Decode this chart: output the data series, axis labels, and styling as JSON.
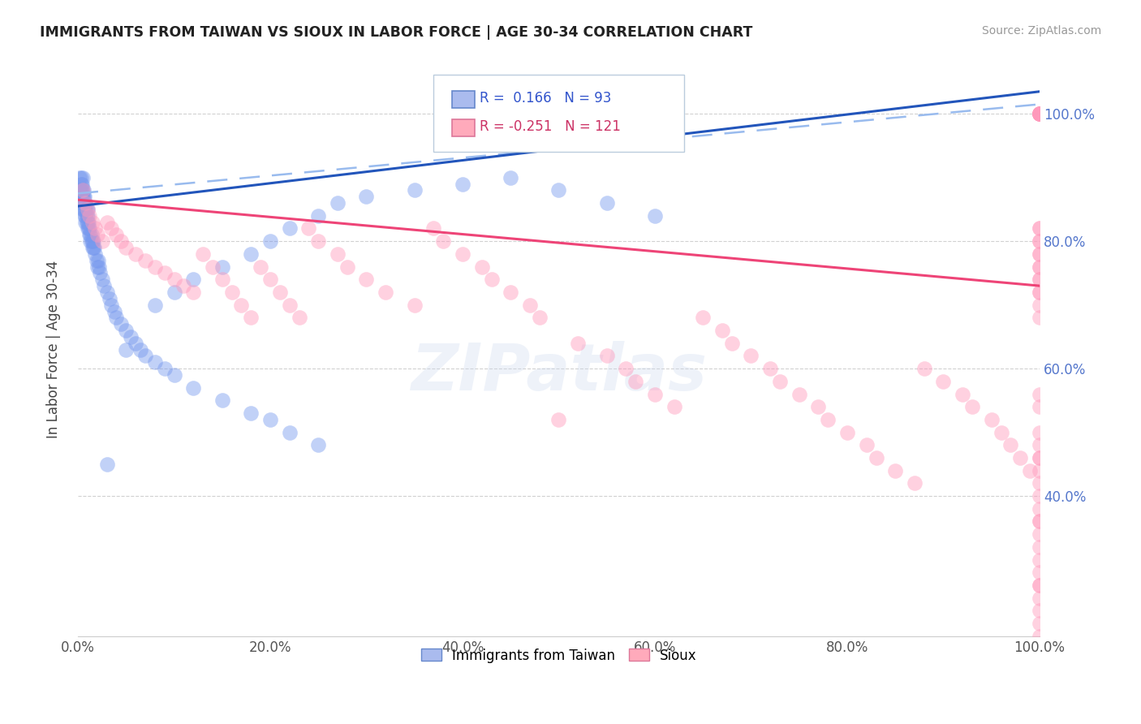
{
  "title": "IMMIGRANTS FROM TAIWAN VS SIOUX IN LABOR FORCE | AGE 30-34 CORRELATION CHART",
  "source": "Source: ZipAtlas.com",
  "ylabel": "In Labor Force | Age 30-34",
  "xlim": [
    0.0,
    1.0
  ],
  "ylim": [
    0.18,
    1.08
  ],
  "taiwan_R": 0.166,
  "taiwan_N": 93,
  "sioux_R": -0.251,
  "sioux_N": 121,
  "taiwan_color": "#7799ee",
  "sioux_color": "#ff99bb",
  "taiwan_trend_color": "#2255bb",
  "sioux_trend_color": "#ee4477",
  "taiwan_dashed_color": "#99bbee",
  "background_color": "#ffffff",
  "grid_color": "#cccccc",
  "tick_color": "#5577cc",
  "taiwan_x": [
    0.002,
    0.002,
    0.003,
    0.003,
    0.003,
    0.003,
    0.004,
    0.004,
    0.004,
    0.004,
    0.005,
    0.005,
    0.005,
    0.005,
    0.005,
    0.006,
    0.006,
    0.006,
    0.006,
    0.007,
    0.007,
    0.007,
    0.007,
    0.008,
    0.008,
    0.008,
    0.008,
    0.009,
    0.009,
    0.009,
    0.01,
    0.01,
    0.01,
    0.01,
    0.011,
    0.011,
    0.012,
    0.012,
    0.013,
    0.013,
    0.014,
    0.014,
    0.015,
    0.015,
    0.016,
    0.016,
    0.017,
    0.018,
    0.019,
    0.02,
    0.021,
    0.022,
    0.023,
    0.025,
    0.027,
    0.03,
    0.033,
    0.035,
    0.038,
    0.04,
    0.045,
    0.05,
    0.055,
    0.06,
    0.065,
    0.07,
    0.08,
    0.09,
    0.1,
    0.12,
    0.15,
    0.18,
    0.2,
    0.22,
    0.25,
    0.03,
    0.05,
    0.08,
    0.1,
    0.12,
    0.15,
    0.18,
    0.2,
    0.22,
    0.25,
    0.27,
    0.3,
    0.35,
    0.4,
    0.45,
    0.5,
    0.55,
    0.6
  ],
  "taiwan_y": [
    0.88,
    0.9,
    0.87,
    0.88,
    0.89,
    0.9,
    0.86,
    0.87,
    0.88,
    0.89,
    0.85,
    0.86,
    0.87,
    0.88,
    0.9,
    0.85,
    0.86,
    0.87,
    0.88,
    0.84,
    0.85,
    0.86,
    0.87,
    0.83,
    0.84,
    0.85,
    0.86,
    0.83,
    0.84,
    0.85,
    0.82,
    0.83,
    0.84,
    0.85,
    0.82,
    0.83,
    0.81,
    0.82,
    0.8,
    0.81,
    0.8,
    0.81,
    0.79,
    0.8,
    0.79,
    0.8,
    0.79,
    0.78,
    0.77,
    0.76,
    0.77,
    0.76,
    0.75,
    0.74,
    0.73,
    0.72,
    0.71,
    0.7,
    0.69,
    0.68,
    0.67,
    0.66,
    0.65,
    0.64,
    0.63,
    0.62,
    0.61,
    0.6,
    0.59,
    0.57,
    0.55,
    0.53,
    0.52,
    0.5,
    0.48,
    0.45,
    0.63,
    0.7,
    0.72,
    0.74,
    0.76,
    0.78,
    0.8,
    0.82,
    0.84,
    0.86,
    0.87,
    0.88,
    0.89,
    0.9,
    0.88,
    0.86,
    0.84
  ],
  "sioux_x": [
    0.005,
    0.008,
    0.01,
    0.012,
    0.015,
    0.018,
    0.02,
    0.025,
    0.03,
    0.035,
    0.04,
    0.045,
    0.05,
    0.06,
    0.07,
    0.08,
    0.09,
    0.1,
    0.11,
    0.12,
    0.13,
    0.14,
    0.15,
    0.16,
    0.17,
    0.18,
    0.19,
    0.2,
    0.21,
    0.22,
    0.23,
    0.24,
    0.25,
    0.27,
    0.28,
    0.3,
    0.32,
    0.35,
    0.37,
    0.38,
    0.4,
    0.42,
    0.43,
    0.45,
    0.47,
    0.48,
    0.5,
    0.52,
    0.55,
    0.57,
    0.58,
    0.6,
    0.62,
    0.65,
    0.67,
    0.68,
    0.7,
    0.72,
    0.73,
    0.75,
    0.77,
    0.78,
    0.8,
    0.82,
    0.83,
    0.85,
    0.87,
    0.88,
    0.9,
    0.92,
    0.93,
    0.95,
    0.96,
    0.97,
    0.98,
    0.99,
    1.0,
    1.0,
    1.0,
    1.0,
    1.0,
    1.0,
    1.0,
    1.0,
    1.0,
    1.0,
    1.0,
    1.0,
    1.0,
    1.0,
    1.0,
    1.0,
    1.0,
    1.0,
    1.0,
    1.0,
    1.0,
    1.0,
    1.0,
    1.0,
    1.0,
    1.0,
    1.0,
    1.0,
    1.0,
    1.0,
    1.0,
    1.0,
    1.0,
    1.0,
    1.0,
    1.0,
    1.0,
    1.0,
    1.0,
    1.0,
    1.0,
    1.0,
    1.0,
    1.0,
    1.0
  ],
  "sioux_y": [
    0.88,
    0.86,
    0.85,
    0.84,
    0.83,
    0.82,
    0.81,
    0.8,
    0.83,
    0.82,
    0.81,
    0.8,
    0.79,
    0.78,
    0.77,
    0.76,
    0.75,
    0.74,
    0.73,
    0.72,
    0.78,
    0.76,
    0.74,
    0.72,
    0.7,
    0.68,
    0.76,
    0.74,
    0.72,
    0.7,
    0.68,
    0.82,
    0.8,
    0.78,
    0.76,
    0.74,
    0.72,
    0.7,
    0.82,
    0.8,
    0.78,
    0.76,
    0.74,
    0.72,
    0.7,
    0.68,
    0.52,
    0.64,
    0.62,
    0.6,
    0.58,
    0.56,
    0.54,
    0.68,
    0.66,
    0.64,
    0.62,
    0.6,
    0.58,
    0.56,
    0.54,
    0.52,
    0.5,
    0.48,
    0.46,
    0.44,
    0.42,
    0.6,
    0.58,
    0.56,
    0.54,
    0.52,
    0.5,
    0.48,
    0.46,
    0.44,
    1.0,
    1.0,
    1.0,
    1.0,
    1.0,
    1.0,
    1.0,
    1.0,
    1.0,
    0.82,
    0.8,
    0.78,
    0.76,
    0.74,
    0.72,
    0.7,
    0.68,
    0.82,
    0.8,
    0.78,
    0.76,
    0.74,
    0.72,
    0.56,
    0.54,
    0.5,
    0.48,
    0.46,
    0.44,
    0.42,
    0.4,
    0.38,
    0.36,
    0.34,
    0.32,
    0.3,
    0.28,
    0.26,
    0.24,
    0.22,
    0.2,
    0.18,
    0.26,
    0.36,
    0.46
  ]
}
